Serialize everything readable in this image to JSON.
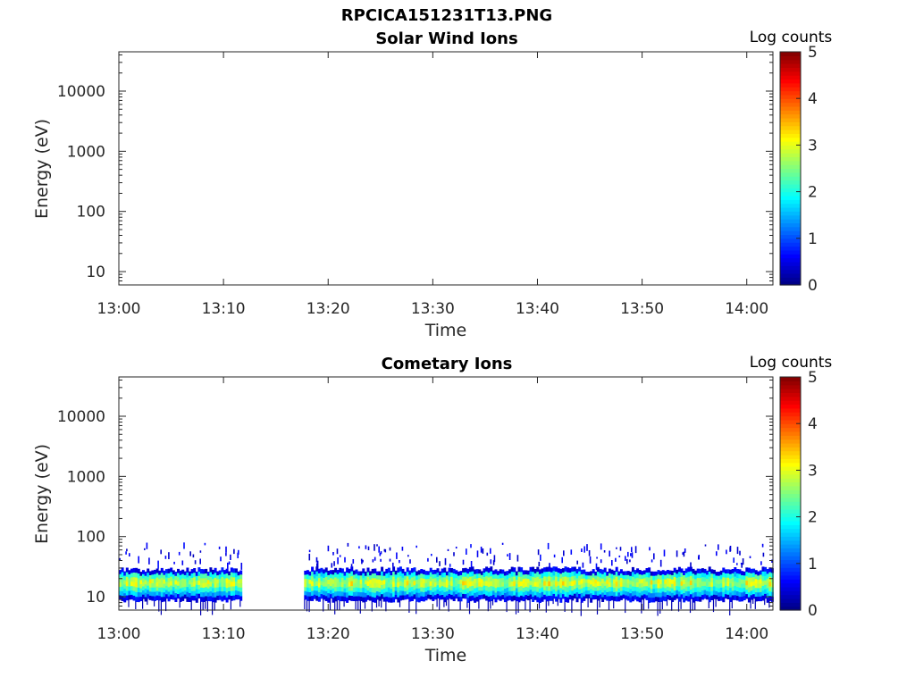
{
  "figure": {
    "title": "RPCICA151231T13.PNG"
  },
  "colorbar": {
    "label": "Log counts",
    "ticks": [
      "0",
      "1",
      "2",
      "3",
      "4",
      "5"
    ],
    "range": [
      0,
      5
    ],
    "colormap": "jet"
  },
  "chart_data": [
    {
      "type": "heatmap",
      "title": "Solar Wind Ions",
      "xlabel": "Time",
      "ylabel": "Energy (eV)",
      "x_ticks": [
        "13:00",
        "13:10",
        "13:20",
        "13:30",
        "13:40",
        "13:50",
        "14:00"
      ],
      "x_range_minutes": [
        0,
        62.5
      ],
      "y_ticks": [
        "10",
        "100",
        "1000",
        "10000"
      ],
      "y_scale": "log",
      "y_range": [
        6,
        45000
      ],
      "z_range": [
        0,
        5
      ],
      "bands": []
    },
    {
      "type": "heatmap",
      "title": "Cometary Ions",
      "xlabel": "Time",
      "ylabel": "Energy (eV)",
      "x_ticks": [
        "13:00",
        "13:10",
        "13:20",
        "13:30",
        "13:40",
        "13:50",
        "14:00"
      ],
      "x_range_minutes": [
        0,
        62.5
      ],
      "y_ticks": [
        "10",
        "100",
        "1000",
        "10000"
      ],
      "y_scale": "log",
      "y_range": [
        6,
        45000
      ],
      "z_range": [
        0,
        5
      ],
      "data_gap_minutes": [
        11.7,
        17.7
      ],
      "bands": [
        {
          "t_start_min": 0,
          "t_end_min": 11.7,
          "e_low": 9,
          "e_high": 30,
          "peak_energy": 17,
          "peak_log_counts": 2.6
        },
        {
          "t_start_min": 17.7,
          "t_end_min": 62.5,
          "e_low": 9,
          "e_high": 30,
          "peak_energy": 17,
          "peak_log_counts": 2.7
        }
      ],
      "scattered_counts": {
        "e_low": 35,
        "e_high": 80,
        "log_counts": 0.5
      }
    }
  ]
}
